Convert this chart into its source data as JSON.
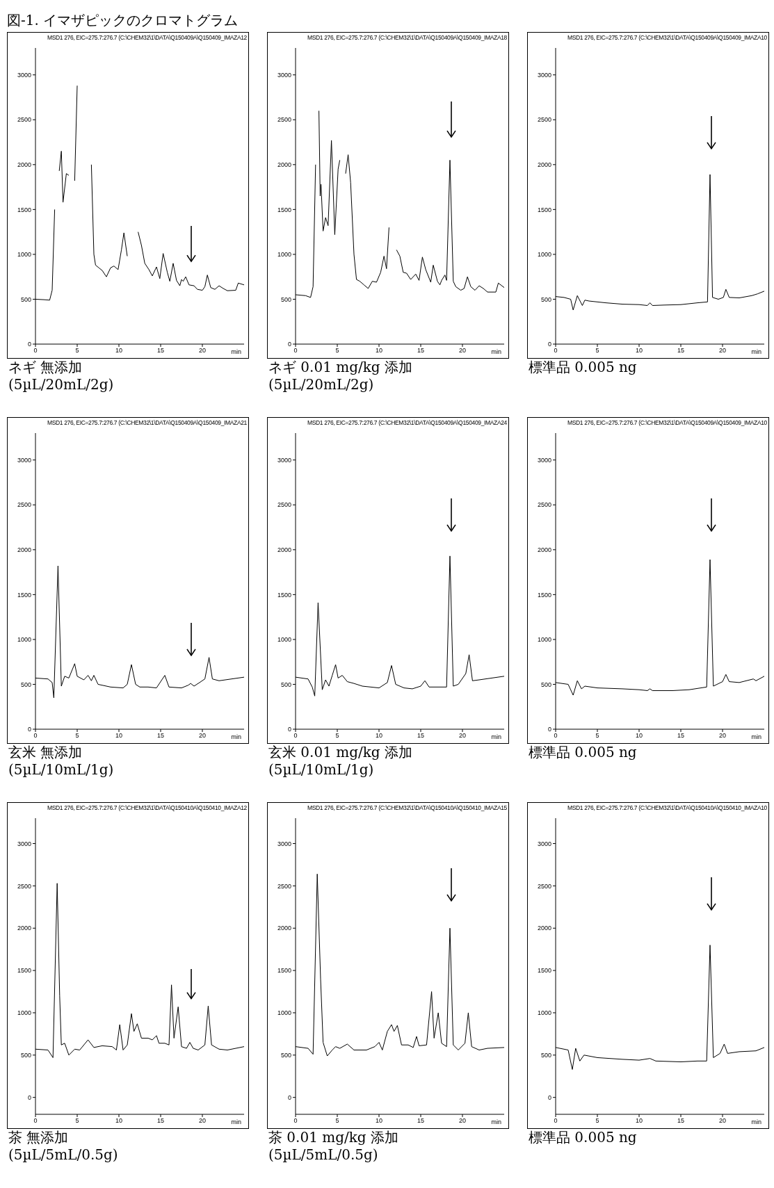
{
  "chart_data": [
    {
      "type": "line",
      "title": "図-1. イマザピックのクロマトグラム",
      "subtitle": "MSD1 276, EIC=275.7:276.7 (C:\\CHEM32\\1\\DATA\\Q150409A\\Q150409_IMAZA12",
      "xlabel": "min",
      "annotations": [
        "ネギ 無添加",
        "(5µL/20mL/2g)"
      ],
      "xlim": [
        0,
        25
      ],
      "xticks": [
        0,
        5,
        10,
        15,
        20
      ],
      "ylim": [
        0,
        3300
      ],
      "yticks": [
        0,
        500,
        1000,
        1500,
        2000,
        2500,
        3000
      ],
      "color": "#000000",
      "x": [
        0,
        1,
        1.7,
        2,
        2.3,
        2.5,
        2.85,
        3.1,
        3.3,
        3.7,
        4,
        4.1,
        4.4,
        4.7,
        5,
        5.2,
        6.4,
        6.7,
        7,
        7.2,
        7.6,
        8,
        8.5,
        9,
        9.4,
        9.9,
        10.3,
        10.6,
        11,
        11.3,
        12,
        12.3,
        12.7,
        13.1,
        13.6,
        14,
        14.5,
        14.9,
        15.3,
        15.8,
        16.1,
        16.5,
        16.9,
        17.3,
        17.5,
        17.7,
        18,
        18.4,
        19,
        19.4,
        20,
        20.3,
        20.6,
        21,
        21.5,
        22,
        22.5,
        23,
        24,
        24.3,
        25
      ],
      "values": [
        500,
        495,
        490,
        600,
        1500,
        null,
        1930,
        2150,
        1580,
        1900,
        1880,
        null,
        null,
        1820,
        2880,
        null,
        null,
        2000,
        1000,
        880,
        850,
        820,
        750,
        850,
        870,
        830,
        1050,
        1240,
        980,
        null,
        null,
        1250,
        1100,
        900,
        830,
        760,
        860,
        730,
        1010,
        800,
        700,
        900,
        710,
        650,
        720,
        700,
        750,
        660,
        650,
        610,
        600,
        640,
        770,
        630,
        610,
        650,
        620,
        595,
        600,
        680,
        660
      ]
    },
    {
      "type": "line",
      "subtitle": "MSD1 276, EIC=275.7:276.7 (C:\\CHEM32\\1\\DATA\\Q150409A\\Q150409_IMAZA18",
      "xlabel": "min",
      "annotations": [
        "ネギ 0.01 mg/kg 添加",
        "(5µL/20mL/2g)"
      ],
      "xlim": [
        0,
        25
      ],
      "xticks": [
        0,
        5,
        10,
        15,
        20
      ],
      "ylim": [
        0,
        3300
      ],
      "yticks": [
        0,
        500,
        1000,
        1500,
        2000,
        2500,
        3000
      ],
      "color": "#000000",
      "x": [
        0,
        1.2,
        1.8,
        2.1,
        2.4,
        2.6,
        2.8,
        2.95,
        3.05,
        3.3,
        3.6,
        3.9,
        4.3,
        4.7,
        5.1,
        5.3,
        5.5,
        5.7,
        6,
        6.3,
        6.6,
        7,
        7.3,
        7.7,
        8.2,
        8.7,
        9.2,
        9.7,
        10.2,
        10.6,
        10.9,
        11.2,
        11.4,
        11.9,
        12.1,
        12.5,
        12.9,
        13.3,
        13.8,
        14.4,
        14.8,
        15.2,
        15.6,
        16.2,
        16.5,
        17,
        17.3,
        17.5,
        17.9,
        18.1,
        18.5,
        18.9,
        19.2,
        19.8,
        20.2,
        20.6,
        21,
        21.5,
        22,
        22.5,
        23,
        24,
        24.3,
        25
      ],
      "values": [
        550,
        540,
        520,
        640,
        2000,
        null,
        2600,
        1650,
        1780,
        1260,
        1410,
        1320,
        2270,
        1220,
        1950,
        2050,
        null,
        null,
        1900,
        2110,
        1800,
        1000,
        720,
        700,
        660,
        620,
        700,
        690,
        800,
        980,
        840,
        1300,
        null,
        null,
        1050,
        980,
        800,
        790,
        720,
        780,
        710,
        970,
        830,
        690,
        880,
        700,
        660,
        710,
        770,
        710,
        2050,
        700,
        640,
        600,
        620,
        750,
        640,
        600,
        650,
        620,
        580,
        580,
        680,
        630
      ]
    },
    {
      "type": "line",
      "subtitle": "MSD1 276, EIC=275.7:276.7 (C:\\CHEM32\\1\\DATA\\Q150409A\\Q150409_IMAZA10",
      "xlabel": "min",
      "annotations": [
        "標準品 0.005 ng"
      ],
      "xlim": [
        0,
        25
      ],
      "xticks": [
        0,
        5,
        10,
        15,
        20
      ],
      "ylim": [
        0,
        3300
      ],
      "yticks": [
        0,
        500,
        1000,
        1500,
        2000,
        2500,
        3000
      ],
      "color": "#000000",
      "x": [
        0,
        1,
        1.8,
        2.1,
        2.6,
        3.2,
        3.5,
        4,
        6,
        8,
        10,
        11,
        11.3,
        11.6,
        13,
        15,
        17,
        18.2,
        18.5,
        18.8,
        19.5,
        20.1,
        20.4,
        20.8,
        22,
        23.5,
        24.2,
        25
      ],
      "values": [
        530,
        520,
        500,
        380,
        540,
        430,
        490,
        480,
        460,
        445,
        440,
        430,
        460,
        430,
        435,
        440,
        460,
        470,
        1890,
        520,
        500,
        520,
        610,
        520,
        515,
        540,
        560,
        590
      ]
    },
    {
      "type": "line",
      "subtitle": "MSD1 276, EIC=275.7:276.7 (C:\\CHEM32\\1\\DATA\\Q150409A\\Q150409_IMAZA21",
      "xlabel": "min",
      "annotations": [
        "玄米 無添加",
        "(5µL/10mL/1g)"
      ],
      "xlim": [
        0,
        25
      ],
      "xticks": [
        0,
        5,
        10,
        15,
        20
      ],
      "ylim": [
        0,
        3300
      ],
      "yticks": [
        0,
        500,
        1000,
        1500,
        2000,
        2500,
        3000
      ],
      "color": "#000000",
      "x": [
        0,
        1.5,
        2,
        2.2,
        2.7,
        3.1,
        3.5,
        4,
        4.7,
        5,
        5.8,
        6.3,
        6.7,
        7,
        7.5,
        9,
        10.5,
        11,
        11.5,
        12,
        12.5,
        13.5,
        14.5,
        15.5,
        16,
        17.5,
        18.3,
        18.6,
        19,
        19.5,
        20.3,
        20.8,
        21.2,
        22,
        23.5,
        25
      ],
      "values": [
        570,
        560,
        520,
        350,
        1820,
        480,
        590,
        570,
        730,
        590,
        550,
        600,
        540,
        600,
        500,
        470,
        460,
        500,
        720,
        500,
        470,
        470,
        460,
        600,
        470,
        460,
        490,
        510,
        480,
        510,
        560,
        800,
        560,
        540,
        560,
        580
      ]
    },
    {
      "type": "line",
      "subtitle": "MSD1 276, EIC=275.7:276.7 (C:\\CHEM32\\1\\DATA\\Q150409A\\Q150409_IMAZA24",
      "xlabel": "min",
      "annotations": [
        "玄米 0.01 mg/kg 添加",
        "(5µL/10mL/1g)"
      ],
      "xlim": [
        0,
        25
      ],
      "xticks": [
        0,
        5,
        10,
        15,
        20
      ],
      "ylim": [
        0,
        3300
      ],
      "yticks": [
        0,
        500,
        1000,
        1500,
        2000,
        2500,
        3000
      ],
      "color": "#000000",
      "x": [
        0,
        1.5,
        2,
        2.3,
        2.7,
        3.2,
        3.6,
        4,
        4.4,
        4.8,
        5.1,
        5.6,
        6.2,
        7,
        8,
        9,
        10,
        11,
        11.5,
        12,
        13,
        14,
        15,
        15.5,
        16,
        17,
        18.1,
        18.5,
        18.9,
        19.5,
        20.4,
        20.8,
        21.2,
        22,
        23.5,
        25
      ],
      "values": [
        580,
        560,
        470,
        370,
        1410,
        440,
        550,
        480,
        600,
        720,
        570,
        600,
        530,
        510,
        480,
        470,
        460,
        520,
        710,
        500,
        460,
        450,
        480,
        540,
        470,
        470,
        470,
        1930,
        480,
        500,
        620,
        830,
        540,
        550,
        570,
        590
      ]
    },
    {
      "type": "line",
      "subtitle": "MSD1 276, EIC=275.7:276.7 (C:\\CHEM32\\1\\DATA\\Q150409A\\Q150409_IMAZA10",
      "xlabel": "min",
      "annotations": [
        "標準品 0.005 ng"
      ],
      "xlim": [
        0,
        25
      ],
      "xticks": [
        0,
        5,
        10,
        15,
        20
      ],
      "ylim": [
        0,
        3300
      ],
      "yticks": [
        0,
        500,
        1000,
        1500,
        2000,
        2500,
        3000
      ],
      "color": "#000000",
      "x": [
        0,
        1.5,
        2.1,
        2.6,
        3.1,
        3.5,
        5,
        8,
        10,
        11,
        11.3,
        11.6,
        14,
        16,
        18.1,
        18.5,
        18.9,
        20,
        20.4,
        20.8,
        22,
        23.7,
        24,
        25
      ],
      "values": [
        520,
        500,
        380,
        540,
        450,
        480,
        460,
        450,
        440,
        430,
        450,
        430,
        430,
        440,
        470,
        1890,
        480,
        530,
        610,
        530,
        520,
        560,
        540,
        590
      ]
    },
    {
      "type": "line",
      "subtitle": "MSD1 276, EIC=275.7:276.7 (C:\\CHEM32\\1\\DATA\\Q150410A\\Q150410_IMAZA12",
      "xlabel": "min",
      "annotations": [
        "茶 無添加",
        "(5µL/5mL/0.5g)"
      ],
      "xlim": [
        0,
        25
      ],
      "xticks": [
        0,
        5,
        10,
        15,
        20
      ],
      "ylim": [
        -200,
        3300
      ],
      "yticks": [
        0,
        500,
        1000,
        1500,
        2000,
        2500,
        3000
      ],
      "color": "#000000",
      "x": [
        0,
        1.5,
        2.1,
        2.6,
        2.9,
        3.1,
        3.5,
        4,
        4.7,
        5.3,
        6.3,
        7,
        8,
        9.2,
        9.7,
        10.1,
        10.5,
        11,
        11.5,
        11.8,
        12.2,
        12.7,
        13.5,
        14,
        14.5,
        14.8,
        15.5,
        16,
        16.3,
        16.6,
        17.1,
        17.5,
        18.1,
        18.5,
        18.9,
        19.5,
        20.3,
        20.7,
        21.1,
        22,
        23,
        25
      ],
      "values": [
        570,
        560,
        470,
        2530,
        1200,
        620,
        640,
        500,
        570,
        560,
        680,
        590,
        610,
        600,
        560,
        860,
        560,
        620,
        990,
        780,
        870,
        700,
        700,
        680,
        730,
        640,
        640,
        620,
        1330,
        700,
        1070,
        600,
        580,
        650,
        580,
        560,
        620,
        1080,
        620,
        570,
        560,
        600
      ]
    },
    {
      "type": "line",
      "subtitle": "MSD1 276, EIC=275.7:276.7 (C:\\CHEM32\\1\\DATA\\Q150410A\\Q150410_IMAZA15",
      "xlabel": "min",
      "annotations": [
        "茶 0.01 mg/kg 添加",
        "(5µL/5mL/0.5g)"
      ],
      "xlim": [
        0,
        25
      ],
      "xticks": [
        0,
        5,
        10,
        15,
        20
      ],
      "ylim": [
        -200,
        3300
      ],
      "yticks": [
        0,
        500,
        1000,
        1500,
        2000,
        2500,
        3000
      ],
      "color": "#000000",
      "x": [
        0,
        1.5,
        2.1,
        2.6,
        3,
        3.3,
        3.8,
        4.4,
        4.8,
        5.3,
        6.2,
        7,
        8.5,
        9.5,
        10,
        10.4,
        11,
        11.5,
        11.8,
        12.2,
        12.7,
        13.5,
        14.1,
        14.5,
        14.8,
        15.7,
        16.3,
        16.6,
        17.1,
        17.5,
        18.1,
        18.5,
        18.9,
        19.5,
        20.3,
        20.7,
        21.1,
        22,
        23,
        25
      ],
      "values": [
        600,
        580,
        510,
        2640,
        1400,
        650,
        490,
        560,
        600,
        580,
        630,
        560,
        560,
        600,
        650,
        560,
        780,
        860,
        780,
        850,
        620,
        620,
        590,
        720,
        610,
        620,
        1250,
        700,
        1000,
        640,
        600,
        2000,
        620,
        560,
        640,
        1000,
        600,
        560,
        580,
        590
      ]
    },
    {
      "type": "line",
      "subtitle": "MSD1 276, EIC=275.7:276.7 (C:\\CHEM32\\1\\DATA\\Q150410A\\Q150410_IMAZA10",
      "xlabel": "min",
      "annotations": [
        "標準品 0.005 ng"
      ],
      "xlim": [
        0,
        25
      ],
      "xticks": [
        0,
        5,
        10,
        15,
        20
      ],
      "ylim": [
        -200,
        3300
      ],
      "yticks": [
        0,
        500,
        1000,
        1500,
        2000,
        2500,
        3000
      ],
      "color": "#000000",
      "x": [
        0,
        1.5,
        2,
        2.4,
        2.9,
        3.4,
        5,
        8,
        10,
        11.3,
        12,
        15,
        17,
        18.1,
        18.5,
        18.9,
        19.7,
        20.2,
        20.6,
        22,
        24,
        25
      ],
      "values": [
        590,
        560,
        330,
        580,
        430,
        500,
        470,
        450,
        440,
        460,
        430,
        420,
        430,
        430,
        1800,
        470,
        520,
        630,
        520,
        540,
        550,
        590
      ]
    }
  ]
}
